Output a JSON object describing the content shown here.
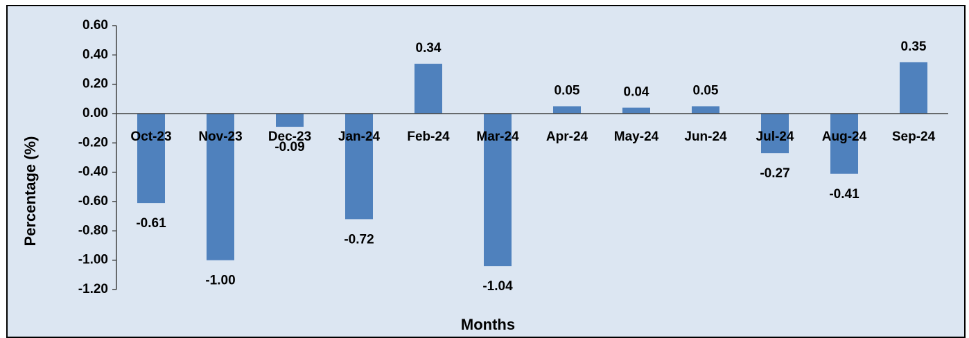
{
  "chart_data": {
    "type": "bar",
    "x_label": "Months",
    "y_label": "Percentage (%)",
    "categories": [
      "Oct-23",
      "Nov-23",
      "Dec-23",
      "Jan-24",
      "Feb-24",
      "Mar-24",
      "Apr-24",
      "May-24",
      "Jun-24",
      "Jul-24",
      "Aug-24",
      "Sep-24"
    ],
    "values": [
      -0.61,
      -1.0,
      -0.09,
      -0.72,
      0.34,
      -1.04,
      0.05,
      0.04,
      0.05,
      -0.27,
      -0.41,
      0.35
    ],
    "value_labels": [
      "-0.61",
      "-1.00",
      "-0.09",
      "-0.72",
      "0.34",
      "-1.04",
      "0.05",
      "0.04",
      "0.05",
      "-0.27",
      "-0.41",
      "0.35"
    ],
    "color": "#4f81bd",
    "ylim": [
      -1.2,
      0.6
    ],
    "yticks": [
      {
        "value": -1.2,
        "label": "-1.20"
      },
      {
        "value": -1.0,
        "label": "-1.00"
      },
      {
        "value": -0.8,
        "label": "-0.80"
      },
      {
        "value": -0.6,
        "label": "-0.60"
      },
      {
        "value": -0.4,
        "label": "-0.40"
      },
      {
        "value": -0.2,
        "label": "-0.20"
      },
      {
        "value": 0,
        "label": "0.00"
      },
      {
        "value": 0.2,
        "label": "0.20"
      },
      {
        "value": 0.4,
        "label": "0.40"
      },
      {
        "value": 0.6,
        "label": "0.60"
      }
    ],
    "grid": false
  }
}
